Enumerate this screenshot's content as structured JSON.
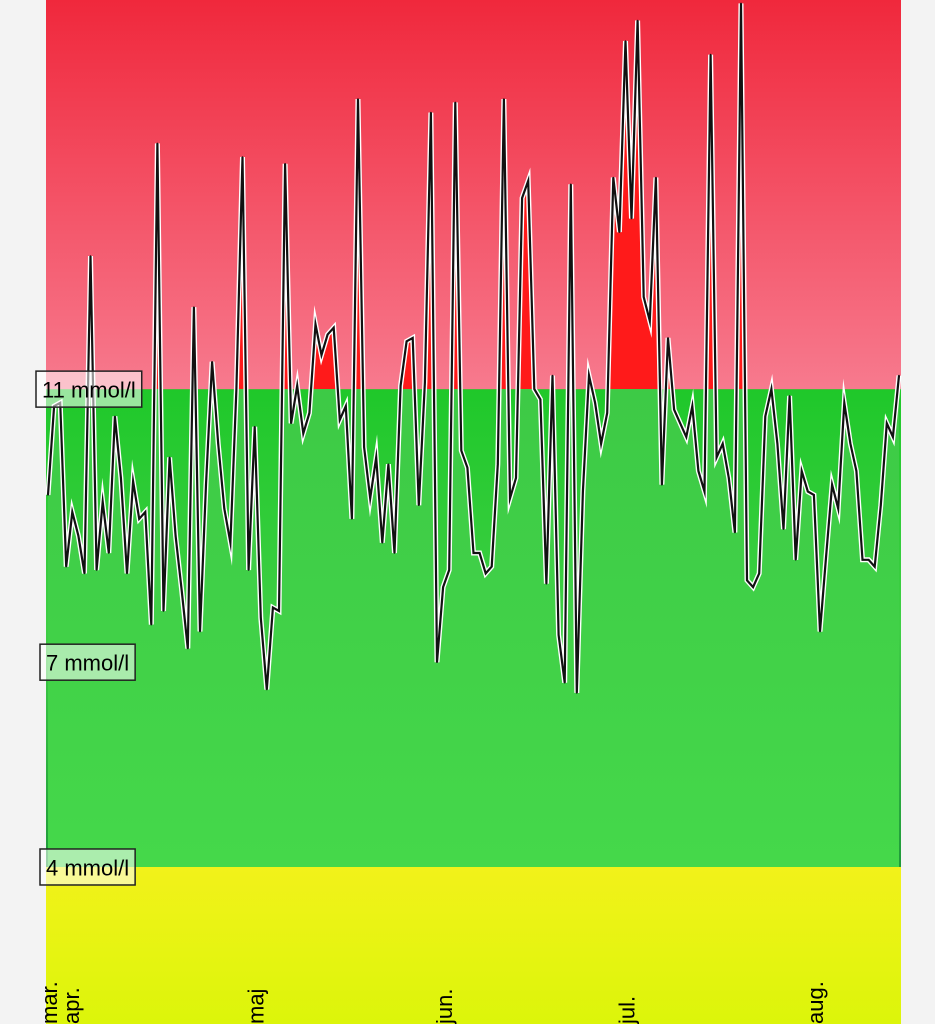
{
  "chart_data": {
    "type": "area",
    "title": "",
    "xlabel": "",
    "ylabel": "",
    "ylim": [
      1.7,
      16.7
    ],
    "bands": [
      {
        "name": "high",
        "from": 11,
        "to": 16.7,
        "color_top": "#f0283c",
        "color_bottom": "#f77a8e"
      },
      {
        "name": "target",
        "from": 4,
        "to": 11,
        "color_top": "#1fc82a",
        "color_bottom": "#1f9a3a"
      },
      {
        "name": "low",
        "from": 1.7,
        "to": 4,
        "color_top": "#f2f21a",
        "color_bottom": "#dcf50a"
      }
    ],
    "threshold_labels": [
      {
        "value": 11,
        "text": "11 mmol/l"
      },
      {
        "value": 7,
        "text": "7 mmol/l"
      },
      {
        "value": 4,
        "text": "4 mmol/l"
      }
    ],
    "months": [
      {
        "label": "mar.",
        "index": 0
      },
      {
        "label": "apr.",
        "index": 4
      },
      {
        "label": "maj",
        "index": 34
      },
      {
        "label": "jun.",
        "index": 65
      },
      {
        "label": "jul.",
        "index": 95
      },
      {
        "label": "aug.",
        "index": 126
      }
    ],
    "colors": {
      "line": "#111111",
      "over_fill": "#ff1a1a",
      "under_fill": "#3cc83c"
    },
    "values": [
      9.45,
      10.75,
      10.8,
      8.4,
      9.2,
      8.85,
      8.3,
      12.95,
      8.35,
      9.35,
      8.6,
      10.6,
      9.7,
      8.3,
      9.65,
      9.1,
      9.2,
      7.55,
      14.6,
      7.75,
      10.0,
      8.85,
      8.05,
      7.2,
      12.2,
      7.45,
      9.6,
      11.4,
      10.2,
      9.25,
      8.75,
      11.0,
      14.4,
      8.35,
      10.45,
      7.65,
      6.6,
      7.8,
      7.75,
      14.3,
      10.5,
      11.05,
      10.35,
      10.65,
      11.95,
      11.5,
      11.8,
      11.9,
      10.55,
      10.75,
      9.1,
      15.25,
      10.15,
      9.4,
      10.0,
      8.75,
      9.9,
      8.6,
      11.05,
      11.7,
      11.75,
      9.3,
      11.1,
      15.05,
      7.0,
      8.1,
      8.35,
      15.2,
      10.1,
      9.85,
      8.6,
      8.6,
      8.3,
      8.4,
      9.9,
      15.25,
      9.4,
      9.7,
      13.8,
      14.05,
      11.0,
      10.85,
      8.15,
      11.2,
      7.4,
      6.7,
      14.0,
      6.55,
      9.5,
      11.2,
      10.8,
      10.2,
      10.65,
      14.1,
      13.3,
      16.1,
      13.5,
      16.4,
      12.35,
      12.0,
      14.1,
      9.6,
      11.75,
      10.7,
      10.5,
      10.3,
      10.75,
      9.8,
      9.5,
      15.9,
      10.0,
      10.2,
      9.7,
      8.9,
      16.65,
      8.2,
      8.1,
      8.3,
      10.6,
      11.0,
      10.2,
      8.95,
      10.9,
      8.5,
      9.8,
      9.5,
      9.45,
      7.45,
      8.55,
      9.6,
      9.25,
      10.8,
      10.2,
      9.8,
      8.5,
      8.5,
      8.4,
      9.3,
      10.5,
      10.3,
      11.2
    ]
  }
}
